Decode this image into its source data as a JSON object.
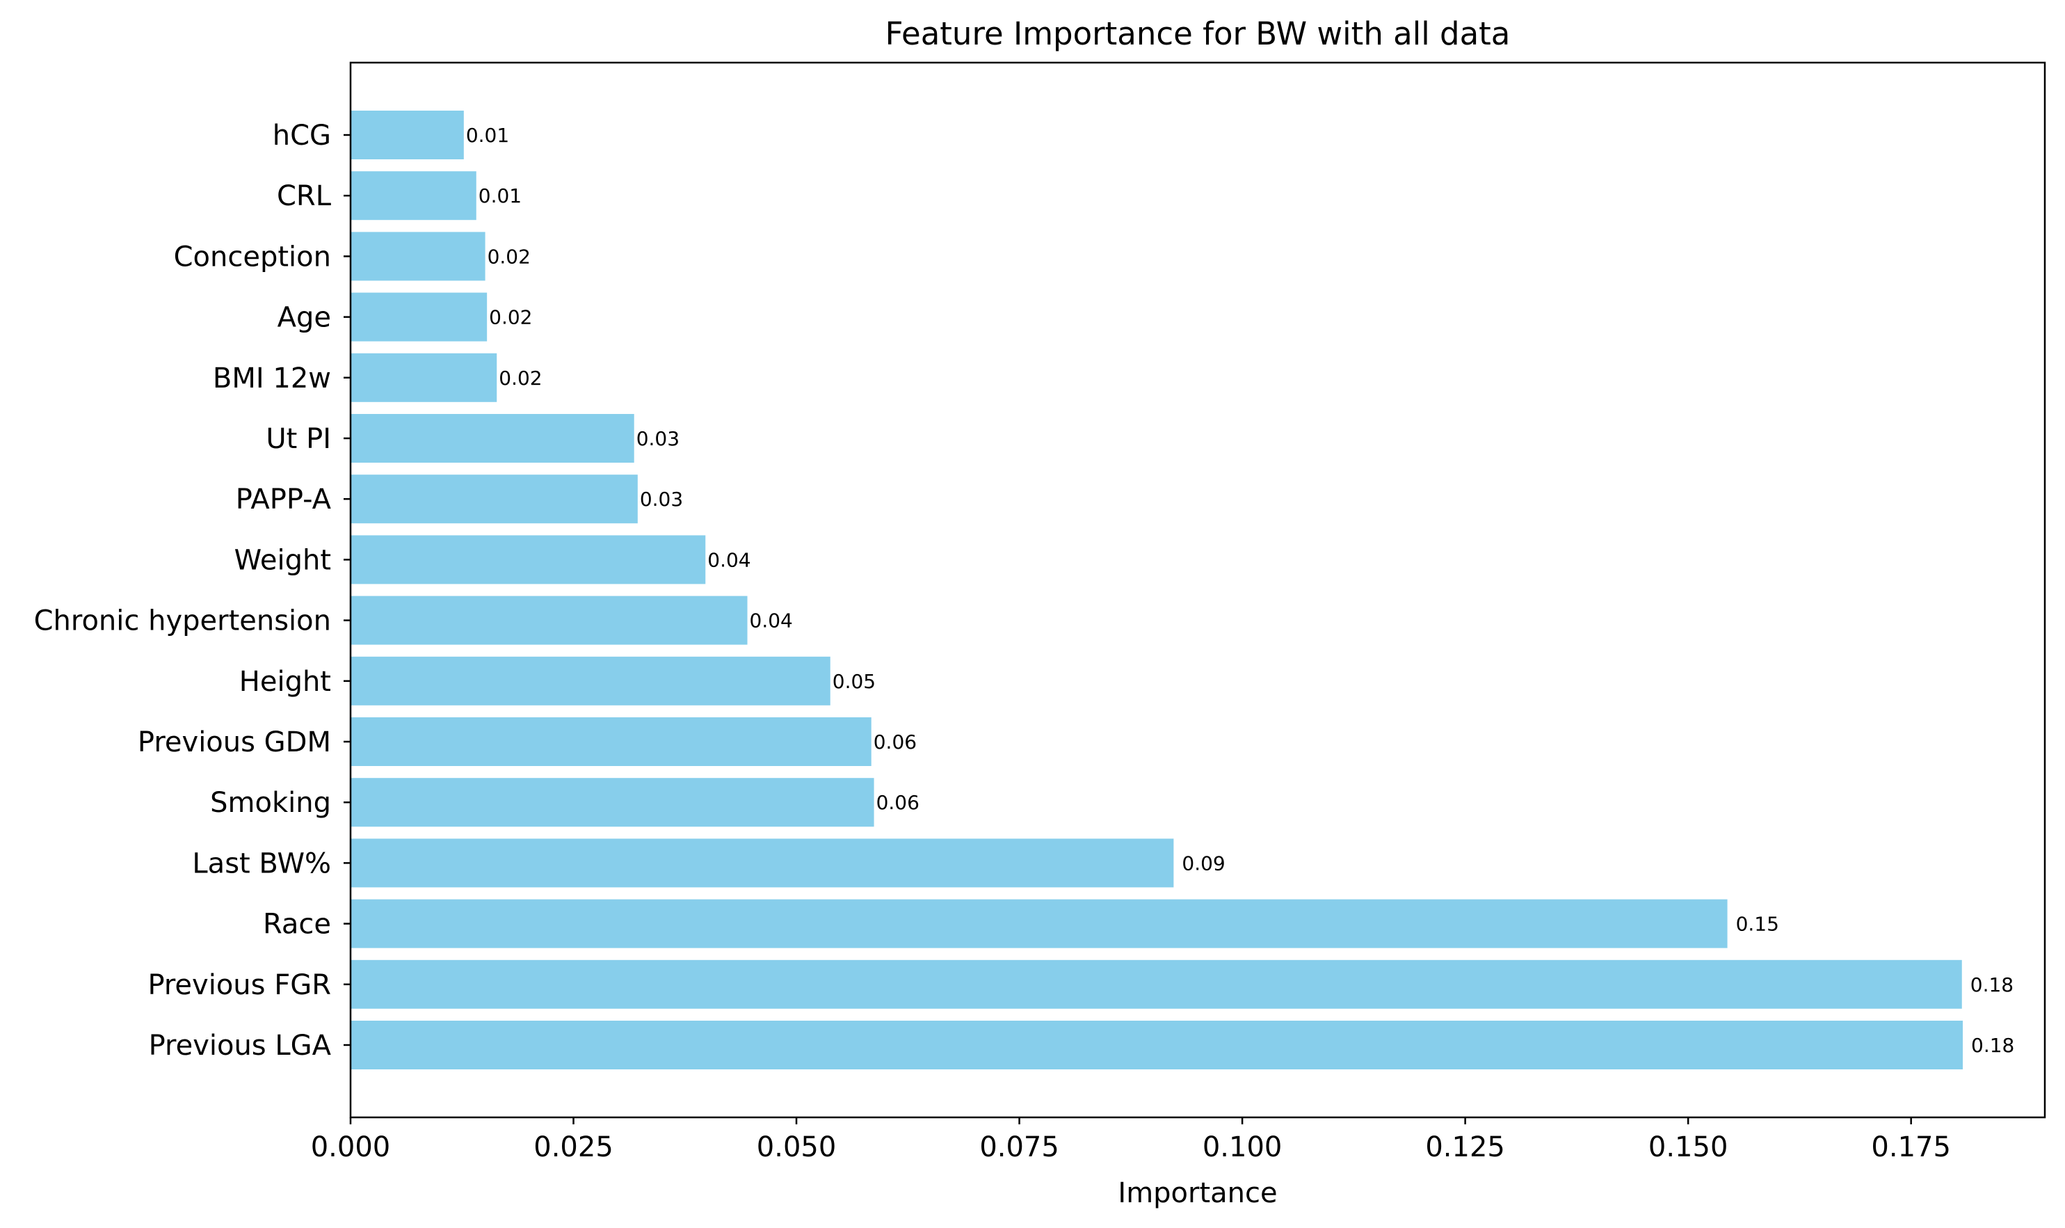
{
  "chart_data": {
    "type": "bar",
    "orientation": "horizontal",
    "title": "Feature Importance for BW with all data",
    "xlabel": "Importance",
    "ylabel": "",
    "xlim": [
      0,
      0.19
    ],
    "x_ticks": [
      "0.000",
      "0.025",
      "0.050",
      "0.075",
      "0.100",
      "0.125",
      "0.150",
      "0.175"
    ],
    "x_tick_values": [
      0,
      0.025,
      0.05,
      0.075,
      0.1,
      0.125,
      0.15,
      0.175
    ],
    "bar_color": "#87CEEB",
    "grid": false,
    "categories": [
      "hCG",
      "CRL",
      "Conception",
      "Age",
      "BMI 12w",
      "Ut PI",
      "PAPP-A",
      "Weight",
      "Chronic hypertension",
      "Height",
      "Previous GDM",
      "Smoking",
      "Last BW%",
      "Race",
      "Previous FGR",
      "Previous LGA"
    ],
    "values": [
      0.0127,
      0.0141,
      0.0151,
      0.0153,
      0.0164,
      0.0318,
      0.0322,
      0.0398,
      0.0445,
      0.0538,
      0.0584,
      0.0587,
      0.0923,
      0.1544,
      0.1807,
      0.1808
    ],
    "value_labels": [
      "0.01",
      "0.01",
      "0.02",
      "0.02",
      "0.02",
      "0.03",
      "0.03",
      "0.04",
      "0.04",
      "0.05",
      "0.06",
      "0.06",
      "0.09",
      "0.15",
      "0.18",
      "0.18"
    ]
  }
}
